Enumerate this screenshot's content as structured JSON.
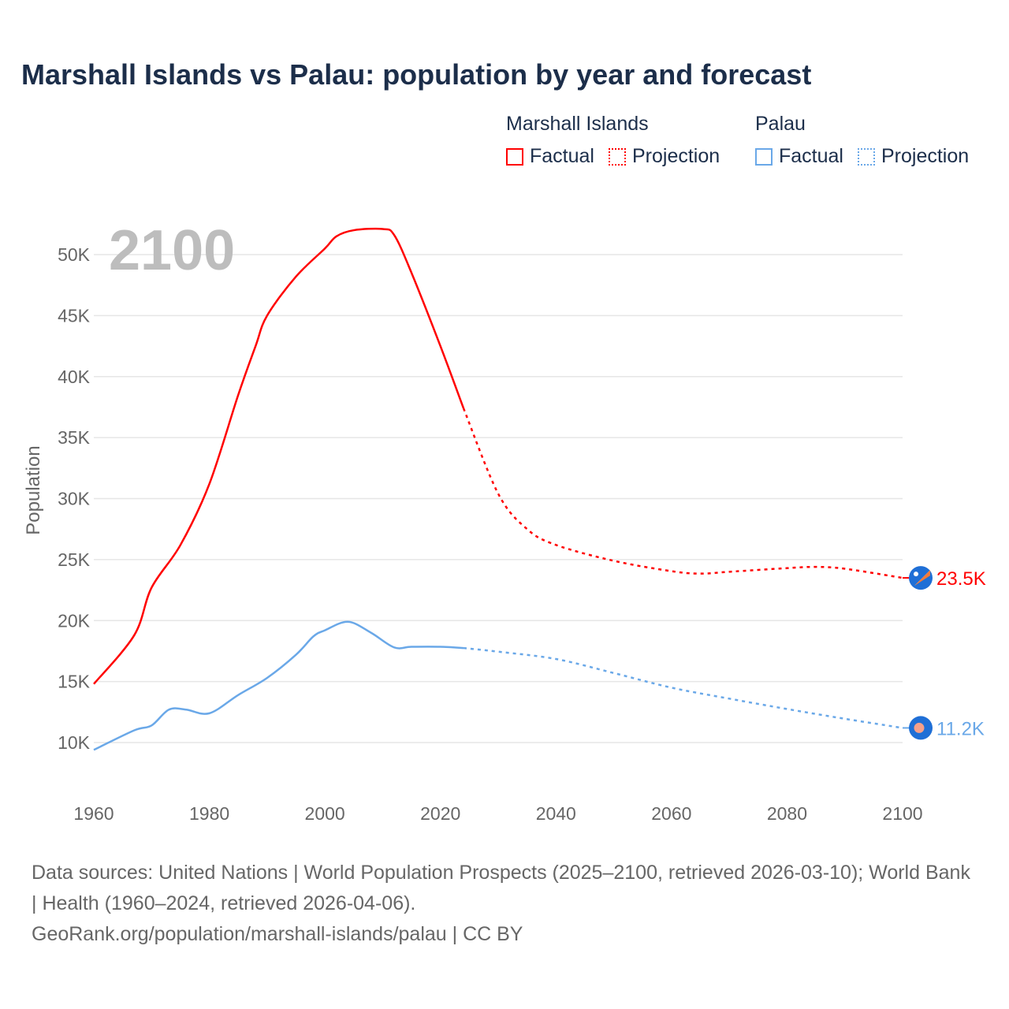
{
  "title": "Marshall Islands vs Palau: population by year and forecast",
  "legend": {
    "groups": [
      {
        "name": "Marshall Islands",
        "factual": "Factual",
        "projection": "Projection",
        "color": "#ff0000"
      },
      {
        "name": "Palau",
        "factual": "Factual",
        "projection": "Projection",
        "color": "#6aa8e8"
      }
    ]
  },
  "year_label": "2100",
  "footer": {
    "sources": "Data sources: United Nations | World Population Prospects (2025–2100, retrieved 2026-03-10); World Bank | Health (1960–2024, retrieved 2026-04-06).",
    "link": "GeoRank.org/population/marshall-islands/palau | CC BY"
  },
  "chart_data": {
    "type": "line",
    "title": "Marshall Islands vs Palau: population by year and forecast",
    "xlabel": "",
    "ylabel": "Population",
    "xlim": [
      1960,
      2100
    ],
    "ylim": [
      7000,
      54000
    ],
    "x_ticks": [
      1960,
      1980,
      2000,
      2020,
      2040,
      2060,
      2080,
      2100
    ],
    "x_tick_labels": [
      "1960",
      "1980",
      "2000",
      "2020",
      "2040",
      "2060",
      "2080",
      "2100"
    ],
    "y_ticks": [
      10000,
      15000,
      20000,
      25000,
      30000,
      35000,
      40000,
      45000,
      50000
    ],
    "y_tick_labels": [
      "10K",
      "15K",
      "20K",
      "25K",
      "30K",
      "35K",
      "40K",
      "45K",
      "50K"
    ],
    "grid": true,
    "legend_position": "top-right",
    "projection_start": 2024,
    "series": [
      {
        "name": "Marshall Islands",
        "color": "#ff0000",
        "end_label": "23.5K",
        "x": [
          1960,
          1967,
          1970,
          1975,
          1980,
          1985,
          1988,
          1990,
          1995,
          2000,
          2002,
          2005,
          2010,
          2012,
          2015,
          2020,
          2024,
          2030,
          2035,
          2040,
          2050,
          2060,
          2065,
          2070,
          2080,
          2085,
          2090,
          2100
        ],
        "y": [
          14800,
          18800,
          22700,
          26200,
          31200,
          38500,
          42500,
          45000,
          48200,
          50500,
          51500,
          52000,
          52100,
          51600,
          48500,
          42500,
          37400,
          30400,
          27500,
          26200,
          24900,
          24050,
          23850,
          24000,
          24300,
          24400,
          24250,
          23500
        ]
      },
      {
        "name": "Palau",
        "color": "#6aa8e8",
        "end_label": "11.2K",
        "x": [
          1960,
          1967,
          1970,
          1973,
          1976,
          1980,
          1985,
          1990,
          1995,
          1998,
          2000,
          2004,
          2008,
          2012,
          2015,
          2020,
          2024,
          2030,
          2040,
          2050,
          2060,
          2070,
          2080,
          2090,
          2100
        ],
        "y": [
          9400,
          11000,
          11400,
          12700,
          12700,
          12400,
          13900,
          15300,
          17200,
          18700,
          19200,
          19900,
          19000,
          17800,
          17850,
          17850,
          17750,
          17450,
          16850,
          15700,
          14500,
          13600,
          12750,
          11950,
          11200
        ]
      }
    ]
  }
}
